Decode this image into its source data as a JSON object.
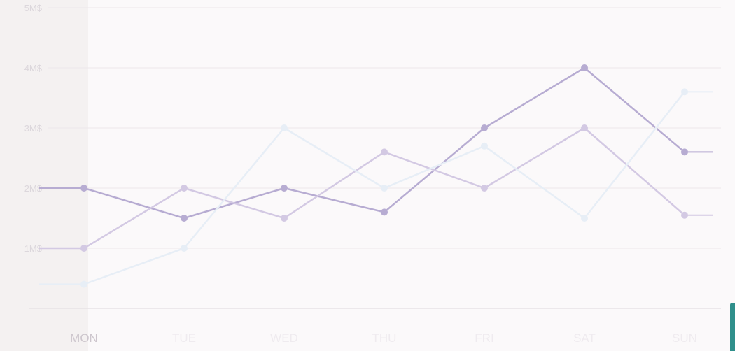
{
  "chart_data": {
    "type": "line",
    "categories": [
      "MON",
      "TUE",
      "WED",
      "THU",
      "FRI",
      "SAT",
      "SUN"
    ],
    "y_ticks": [
      "1M$",
      "2M$",
      "3M$",
      "4M$",
      "5M$"
    ],
    "ylim": [
      0,
      5
    ],
    "grid": true,
    "series": [
      {
        "values": [
          2.0,
          1.5,
          2.0,
          1.6,
          3.0,
          4.0,
          2.6
        ],
        "color": "#b7acd2"
      },
      {
        "values": [
          1.0,
          2.0,
          1.5,
          2.6,
          2.0,
          3.0,
          1.55
        ],
        "color": "#d3c9e3"
      },
      {
        "values": [
          0.4,
          1.0,
          3.0,
          2.0,
          2.7,
          1.5,
          3.6
        ],
        "color": "#e7eef6"
      }
    ]
  },
  "colors": {
    "background": "#f4f1f1",
    "plot_overlay": "#fbf9fa",
    "accent_tab": "#2f8f8b"
  }
}
